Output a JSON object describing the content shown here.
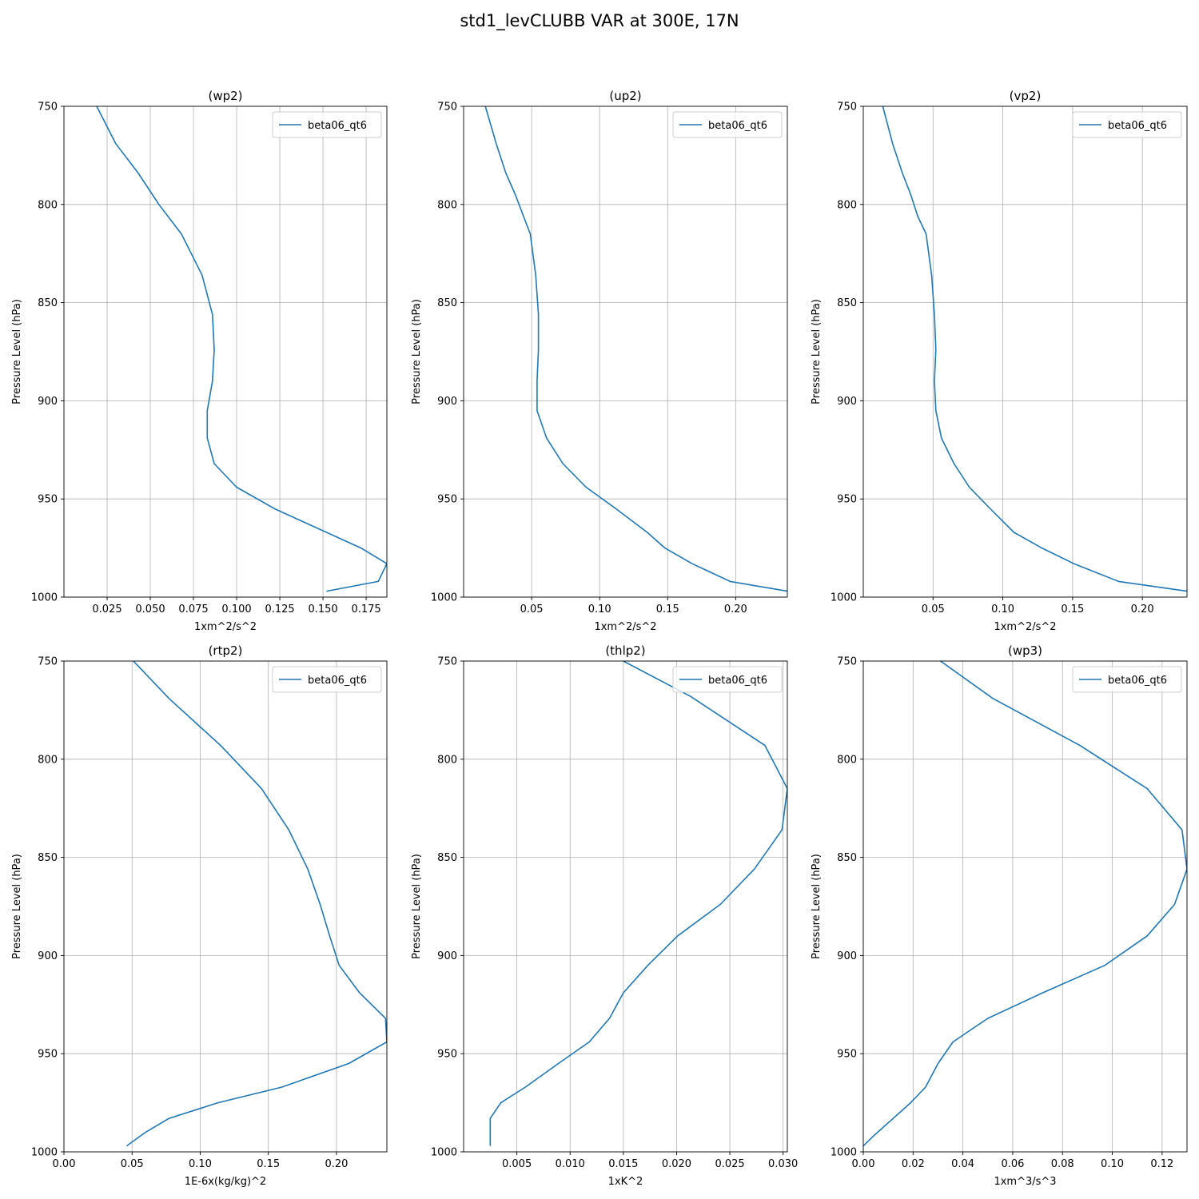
{
  "figure": {
    "title": "std1_levCLUBB VAR at 300E, 17N"
  },
  "colors": {
    "series": "#1f77b4",
    "grid": "#b0b0b0",
    "axes": "#000000"
  },
  "chart_data": [
    {
      "type": "line",
      "title": "(wp2)",
      "xlabel": "1xm^2/s^2",
      "ylabel": "Pressure Level (hPa)",
      "xlim": [
        0.0,
        0.187
      ],
      "ylim": [
        1000,
        750
      ],
      "xticks": [
        0.025,
        0.05,
        0.075,
        0.1,
        0.125,
        0.15,
        0.175
      ],
      "xtick_labels": [
        "0.025",
        "0.050",
        "0.075",
        "0.100",
        "0.125",
        "0.150",
        "0.175"
      ],
      "yticks": [
        750,
        800,
        850,
        900,
        950,
        1000
      ],
      "ytick_labels": [
        "750",
        "800",
        "850",
        "900",
        "950",
        "1000"
      ],
      "grid": true,
      "legend_position": "top-right",
      "series": [
        {
          "name": "beta06_qt6",
          "x": [
            0.019,
            0.03,
            0.043,
            0.055,
            0.068,
            0.08,
            0.086,
            0.087,
            0.086,
            0.083,
            0.083,
            0.087,
            0.1,
            0.122,
            0.172,
            0.187,
            0.182,
            0.152
          ],
          "y": [
            750,
            769,
            784,
            800,
            815,
            836,
            856,
            874,
            890,
            905,
            919,
            932,
            944,
            955,
            975,
            983,
            992,
            997
          ]
        }
      ]
    },
    {
      "type": "line",
      "title": "(up2)",
      "xlabel": "1xm^2/s^2",
      "ylabel": "Pressure Level (hPa)",
      "xlim": [
        0.0,
        0.238
      ],
      "ylim": [
        1000,
        750
      ],
      "xticks": [
        0.05,
        0.1,
        0.15,
        0.2
      ],
      "xtick_labels": [
        "0.05",
        "0.10",
        "0.15",
        "0.20"
      ],
      "yticks": [
        750,
        800,
        850,
        900,
        950,
        1000
      ],
      "ytick_labels": [
        "750",
        "800",
        "850",
        "900",
        "950",
        "1000"
      ],
      "grid": true,
      "legend_position": "top-right",
      "series": [
        {
          "name": "beta06_qt6",
          "x": [
            0.016,
            0.024,
            0.031,
            0.038,
            0.044,
            0.049,
            0.053,
            0.055,
            0.055,
            0.054,
            0.054,
            0.061,
            0.073,
            0.09,
            0.112,
            0.135,
            0.148,
            0.168,
            0.196,
            0.238
          ],
          "y": [
            750,
            769,
            784,
            795,
            806,
            815,
            836,
            856,
            874,
            890,
            905,
            919,
            932,
            944,
            955,
            967,
            975,
            983,
            992,
            997
          ]
        }
      ]
    },
    {
      "type": "line",
      "title": "(vp2)",
      "xlabel": "1xm^2/s^2",
      "ylabel": "Pressure Level (hPa)",
      "xlim": [
        0.0,
        0.232
      ],
      "ylim": [
        1000,
        750
      ],
      "xticks": [
        0.05,
        0.1,
        0.15,
        0.2
      ],
      "xtick_labels": [
        "0.05",
        "0.10",
        "0.15",
        "0.20"
      ],
      "yticks": [
        750,
        800,
        850,
        900,
        950,
        1000
      ],
      "ytick_labels": [
        "750",
        "800",
        "850",
        "900",
        "950",
        "1000"
      ],
      "grid": true,
      "legend_position": "top-right",
      "series": [
        {
          "name": "beta06_qt6",
          "x": [
            0.014,
            0.021,
            0.028,
            0.034,
            0.039,
            0.045,
            0.049,
            0.051,
            0.052,
            0.051,
            0.052,
            0.056,
            0.065,
            0.076,
            0.091,
            0.108,
            0.128,
            0.151,
            0.183,
            0.232
          ],
          "y": [
            750,
            769,
            784,
            795,
            806,
            815,
            836,
            856,
            874,
            890,
            905,
            919,
            932,
            944,
            955,
            967,
            975,
            983,
            992,
            997
          ]
        }
      ]
    },
    {
      "type": "line",
      "title": "(rtp2)",
      "xlabel": "1E-6x(kg/kg)^2",
      "ylabel": "Pressure Level (hPa)",
      "xlim": [
        0.0,
        0.237
      ],
      "ylim": [
        1000,
        750
      ],
      "xticks": [
        0.0,
        0.05,
        0.1,
        0.15,
        0.2
      ],
      "xtick_labels": [
        "0.00",
        "0.05",
        "0.10",
        "0.15",
        "0.20"
      ],
      "yticks": [
        750,
        800,
        850,
        900,
        950,
        1000
      ],
      "ytick_labels": [
        "750",
        "800",
        "850",
        "900",
        "950",
        "1000"
      ],
      "grid": true,
      "legend_position": "top-right",
      "series": [
        {
          "name": "beta06_qt6",
          "x": [
            0.051,
            0.077,
            0.115,
            0.145,
            0.165,
            0.179,
            0.188,
            0.195,
            0.202,
            0.217,
            0.236,
            0.237,
            0.209,
            0.16,
            0.113,
            0.077,
            0.06,
            0.046
          ],
          "y": [
            750,
            769,
            793,
            815,
            836,
            856,
            874,
            890,
            905,
            919,
            932,
            944,
            955,
            967,
            975,
            983,
            990,
            997
          ]
        }
      ]
    },
    {
      "type": "line",
      "title": "(thlp2)",
      "xlabel": "1xK^2",
      "ylabel": "Pressure Level (hPa)",
      "xlim": [
        0.0,
        0.0304
      ],
      "ylim": [
        1000,
        750
      ],
      "xticks": [
        0.005,
        0.01,
        0.015,
        0.02,
        0.025,
        0.03
      ],
      "xtick_labels": [
        "0.005",
        "0.010",
        "0.015",
        "0.020",
        "0.025",
        "0.030"
      ],
      "yticks": [
        750,
        800,
        850,
        900,
        950,
        1000
      ],
      "ytick_labels": [
        "750",
        "800",
        "850",
        "900",
        "950",
        "1000"
      ],
      "grid": true,
      "legend_position": "top-right",
      "series": [
        {
          "name": "beta06_qt6",
          "x": [
            0.015,
            0.0213,
            0.0283,
            0.0304,
            0.0299,
            0.0273,
            0.0241,
            0.0201,
            0.0173,
            0.015,
            0.0137,
            0.0118,
            0.0089,
            0.0058,
            0.0035,
            0.0025,
            0.0025,
            0.0025
          ],
          "y": [
            750,
            768,
            793,
            815,
            836,
            856,
            874,
            890,
            905,
            919,
            932,
            944,
            955,
            967,
            975,
            983,
            992,
            997
          ]
        }
      ]
    },
    {
      "type": "line",
      "title": "(wp3)",
      "xlabel": "1xm^3/s^3",
      "ylabel": "Pressure Level (hPa)",
      "xlim": [
        0.0,
        0.13
      ],
      "ylim": [
        1000,
        750
      ],
      "xticks": [
        0.0,
        0.02,
        0.04,
        0.06,
        0.08,
        0.1,
        0.12
      ],
      "xtick_labels": [
        "0.00",
        "0.02",
        "0.04",
        "0.06",
        "0.08",
        "0.10",
        "0.12"
      ],
      "yticks": [
        750,
        800,
        850,
        900,
        950,
        1000
      ],
      "ytick_labels": [
        "750",
        "800",
        "850",
        "900",
        "950",
        "1000"
      ],
      "grid": true,
      "legend_position": "top-right",
      "series": [
        {
          "name": "beta06_qt6",
          "x": [
            0.031,
            0.052,
            0.087,
            0.114,
            0.128,
            0.13,
            0.125,
            0.114,
            0.097,
            0.072,
            0.05,
            0.036,
            0.03,
            0.025,
            0.019,
            0.012,
            0.004,
            0.0
          ],
          "y": [
            750,
            769,
            793,
            815,
            836,
            856,
            874,
            890,
            905,
            919,
            932,
            944,
            955,
            967,
            975,
            983,
            992,
            997
          ]
        }
      ]
    }
  ]
}
